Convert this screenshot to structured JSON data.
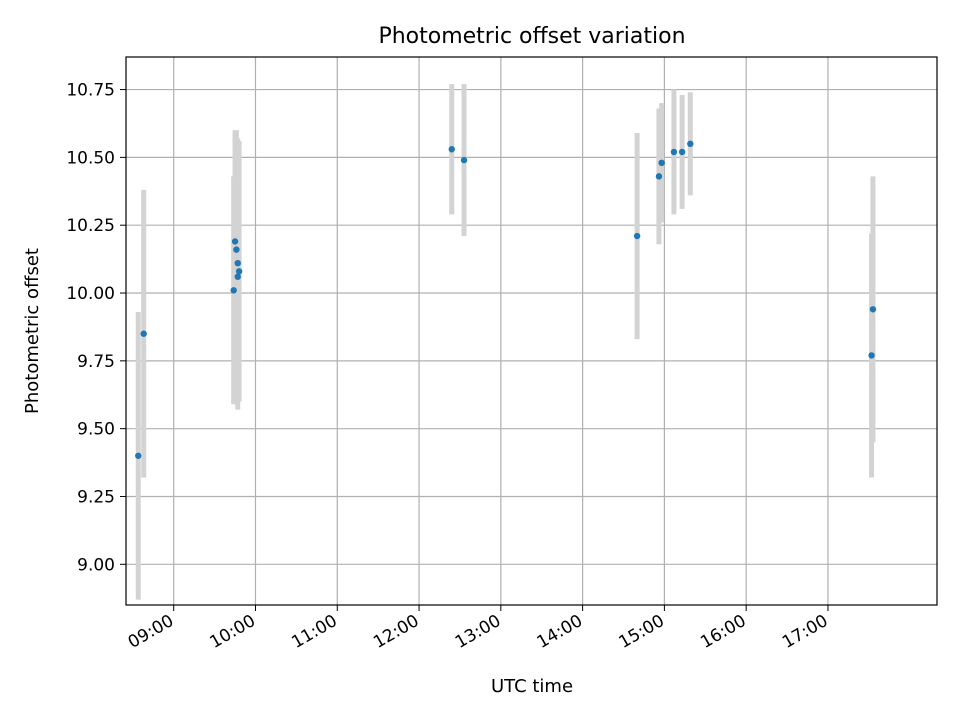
{
  "chart_data": {
    "type": "scatter",
    "title": "Photometric offset variation",
    "xlabel": "UTC time",
    "ylabel": "Photometric offset",
    "xlim": [
      "08:25",
      "18:20"
    ],
    "ylim": [
      8.85,
      10.87
    ],
    "grid": true,
    "x_ticks": [
      "09:00",
      "10:00",
      "11:00",
      "12:00",
      "13:00",
      "14:00",
      "15:00",
      "16:00",
      "17:00"
    ],
    "y_ticks": [
      "9.00",
      "9.25",
      "9.50",
      "9.75",
      "10.00",
      "10.25",
      "10.50",
      "10.75"
    ],
    "series": [
      {
        "marker_color": "#1f77b4",
        "errorbar_color": "#d3d3d3",
        "points": [
          {
            "x": "08:34",
            "y": 9.4,
            "err": 0.53
          },
          {
            "x": "08:38",
            "y": 9.85,
            "err": 0.53
          },
          {
            "x": "09:44",
            "y": 10.01,
            "err": 0.42
          },
          {
            "x": "09:45",
            "y": 10.19,
            "err": 0.41
          },
          {
            "x": "09:46",
            "y": 10.16,
            "err": 0.44
          },
          {
            "x": "09:47",
            "y": 10.11,
            "err": 0.46
          },
          {
            "x": "09:47",
            "y": 10.06,
            "err": 0.49
          },
          {
            "x": "09:48",
            "y": 10.08,
            "err": 0.48
          },
          {
            "x": "12:24",
            "y": 10.53,
            "err": 0.24
          },
          {
            "x": "12:33",
            "y": 10.49,
            "err": 0.28
          },
          {
            "x": "14:40",
            "y": 10.21,
            "err": 0.38
          },
          {
            "x": "14:56",
            "y": 10.43,
            "err": 0.25
          },
          {
            "x": "14:58",
            "y": 10.48,
            "err": 0.22
          },
          {
            "x": "15:07",
            "y": 10.52,
            "err": 0.23
          },
          {
            "x": "15:13",
            "y": 10.52,
            "err": 0.21
          },
          {
            "x": "15:19",
            "y": 10.55,
            "err": 0.19
          },
          {
            "x": "17:32",
            "y": 9.77,
            "err": 0.45
          },
          {
            "x": "17:33",
            "y": 9.94,
            "err": 0.49
          }
        ]
      }
    ]
  }
}
